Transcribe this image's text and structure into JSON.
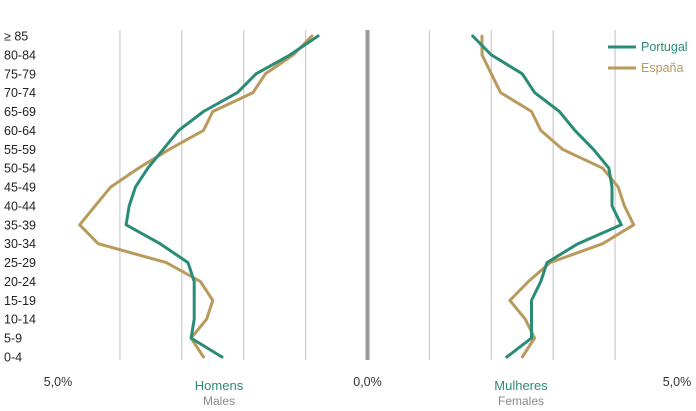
{
  "colors": {
    "portugal": "#2a8c77",
    "espana": "#b99a5c",
    "grid": "#cfcfcf",
    "center_axis": "#9a9a9a",
    "half_title": "#2a8c77"
  },
  "chart_data": {
    "type": "line",
    "subtype": "population-pyramid",
    "age_groups": [
      "0-4",
      "5-9",
      "10-14",
      "15-19",
      "20-24",
      "25-29",
      "30-34",
      "35-39",
      "40-44",
      "45-49",
      "50-54",
      "55-59",
      "60-64",
      "65-69",
      "70-74",
      "75-79",
      "80-84",
      "≥ 85"
    ],
    "x_ticks": [
      {
        "value": -5.0,
        "label": "5,0%"
      },
      {
        "value": 0.0,
        "label": "0,0%"
      },
      {
        "value": 5.0,
        "label": "5,0%"
      }
    ],
    "xlim": [
      -5.0,
      5.0
    ],
    "grid": true,
    "legend_position": "top-right",
    "halves": {
      "left": {
        "title": "Homens",
        "subtitle": "Males"
      },
      "right": {
        "title": "Mulheres",
        "subtitle": "Females"
      }
    },
    "series": [
      {
        "name": "Portugal",
        "color_key": "portugal",
        "males": [
          2.35,
          2.85,
          2.8,
          2.8,
          2.8,
          2.9,
          3.35,
          3.9,
          3.85,
          3.75,
          3.55,
          3.3,
          3.05,
          2.65,
          2.1,
          1.8,
          1.25,
          0.8
        ],
        "females": [
          2.25,
          2.65,
          2.65,
          2.65,
          2.8,
          2.9,
          3.4,
          4.1,
          3.95,
          3.95,
          3.9,
          3.65,
          3.35,
          3.1,
          2.7,
          2.5,
          2.0,
          1.7
        ]
      },
      {
        "name": "España",
        "color_key": "espana",
        "males": [
          2.65,
          2.85,
          2.6,
          2.5,
          2.7,
          3.25,
          4.35,
          4.65,
          4.4,
          4.15,
          3.7,
          3.2,
          2.65,
          2.5,
          1.85,
          1.65,
          1.2,
          0.9
        ],
        "females": [
          2.5,
          2.7,
          2.55,
          2.3,
          2.6,
          2.95,
          3.8,
          4.3,
          4.15,
          4.05,
          3.8,
          3.15,
          2.8,
          2.65,
          2.15,
          2.0,
          1.85,
          1.85
        ]
      }
    ]
  }
}
